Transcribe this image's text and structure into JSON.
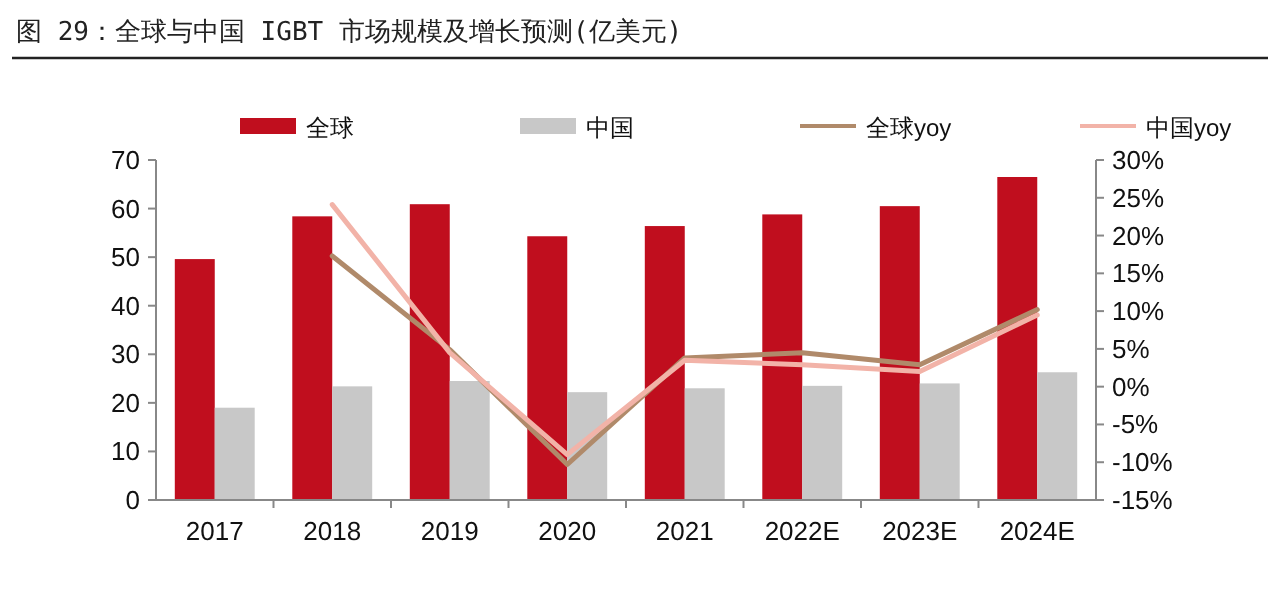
{
  "chart_data": {
    "type": "bar",
    "title": "图 29：全球与中国 IGBT 市场规模及增长预测(亿美元)",
    "categories": [
      "2017",
      "2018",
      "2019",
      "2020",
      "2021",
      "2022E",
      "2023E",
      "2024E"
    ],
    "series": [
      {
        "name": "全球",
        "color": "#c00e1e",
        "values": [
          49.6,
          58.4,
          60.9,
          54.3,
          56.4,
          58.8,
          60.5,
          66.5
        ]
      },
      {
        "name": "中国",
        "color": "#c8c8c8",
        "values": [
          19,
          23.4,
          24.5,
          22.2,
          23,
          23.5,
          24,
          26.3
        ]
      },
      {
        "name": "全球yoy",
        "type": "line",
        "axis": "y2",
        "color": "#b08a6a",
        "values": [
          null,
          17.3,
          4.9,
          -10.3,
          3.8,
          4.5,
          2.9,
          10.2
        ]
      },
      {
        "name": "中国yoy",
        "type": "line",
        "axis": "y2",
        "color": "#f2b3a8",
        "values": [
          null,
          24.1,
          4.5,
          -9,
          3.5,
          2.9,
          2,
          9.5
        ]
      }
    ],
    "ylim": [
      0,
      70
    ],
    "yticks": [
      0,
      10,
      20,
      30,
      40,
      50,
      60,
      70
    ],
    "y2lim": [
      -15,
      30
    ],
    "y2ticks": [
      {
        "value": -15,
        "label": "-15%"
      },
      {
        "value": -10,
        "label": "-10%"
      },
      {
        "value": -5,
        "label": "-5%"
      },
      {
        "value": 0,
        "label": "0%"
      },
      {
        "value": 5,
        "label": "5%"
      },
      {
        "value": 10,
        "label": "10%"
      },
      {
        "value": 15,
        "label": "15%"
      },
      {
        "value": 20,
        "label": "20%"
      },
      {
        "value": 25,
        "label": "25%"
      },
      {
        "value": 30,
        "label": "30%"
      }
    ],
    "grid": false,
    "legend": "top"
  }
}
